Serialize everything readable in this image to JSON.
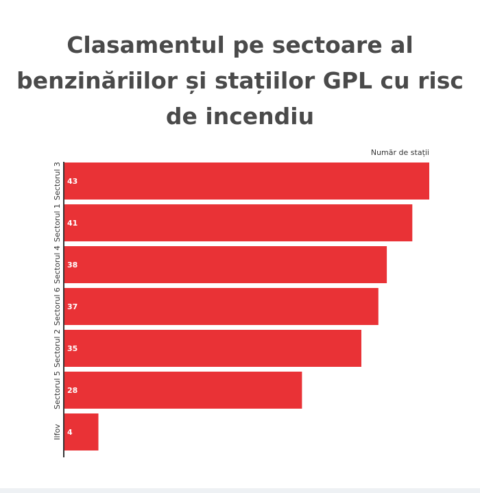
{
  "chart_data": {
    "type": "bar",
    "orientation": "horizontal",
    "title": "Clasamentul pe sectoare al benzinăriilor și stațiilor GPL cu risc de incendiu",
    "value_label": "Număr de stații",
    "categories": [
      "Sectorul 3",
      "Sectorul 1",
      "Sectorul 4",
      "Sectorul 6",
      "Sectorul 2",
      "Sectorul 5",
      "Ilfov"
    ],
    "values": [
      43,
      41,
      38,
      37,
      35,
      28,
      4
    ],
    "xlim": [
      0,
      43
    ],
    "grid": false,
    "bar_color": "#e93236",
    "label_color": "#ffffff",
    "axis_color": "#333333"
  }
}
